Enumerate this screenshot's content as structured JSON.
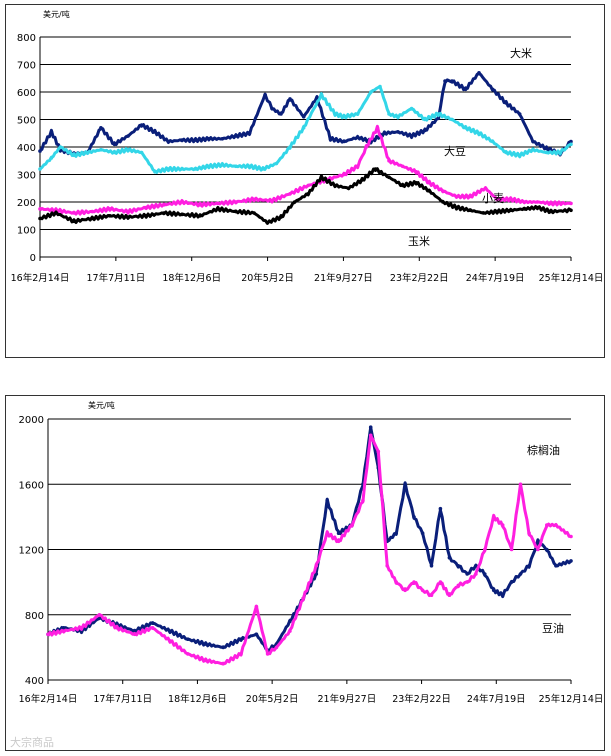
{
  "colors": {
    "rice": "#0a1f7a",
    "soybean": "#33d6e8",
    "wheat": "#ff1fe0",
    "corn": "#000000",
    "palm_oil": "#0a1f7a",
    "soy_oil": "#ff1fe0"
  },
  "watermark": "大宗商品",
  "chart_data": [
    {
      "type": "line",
      "ylabel": "美元/吨",
      "ylim": [
        0,
        800
      ],
      "yticks": [
        0,
        100,
        200,
        300,
        400,
        500,
        600,
        700,
        800
      ],
      "x_start": "2016-02-14",
      "x_end": "2025-12-14",
      "xtick_labels": [
        "16年2月14日",
        "17年7月11日",
        "18年12月6日",
        "20年5月2日",
        "21年9月27日",
        "23年2月22日",
        "24年7月19日",
        "25年12月14日"
      ],
      "grid": true,
      "series": [
        {
          "name": "大米",
          "color_key": "rice",
          "x": [
            "2016-02-14",
            "2016-05-01",
            "2016-07-01",
            "2016-10-01",
            "2017-01-01",
            "2017-04-01",
            "2017-07-01",
            "2017-10-01",
            "2018-01-01",
            "2018-04-01",
            "2018-07-01",
            "2018-10-01",
            "2019-01-01",
            "2019-04-01",
            "2019-07-01",
            "2019-10-01",
            "2020-01-01",
            "2020-04-15",
            "2020-06-01",
            "2020-08-01",
            "2020-10-01",
            "2021-01-01",
            "2021-04-01",
            "2021-07-01",
            "2021-10-01",
            "2022-01-01",
            "2022-04-01",
            "2022-07-01",
            "2022-10-01",
            "2023-01-01",
            "2023-04-01",
            "2023-07-01",
            "2023-08-15",
            "2023-10-01",
            "2024-01-01",
            "2024-04-01",
            "2024-07-01",
            "2024-10-01",
            "2025-01-01",
            "2025-04-01",
            "2025-07-01",
            "2025-10-01",
            "2025-12-14"
          ],
          "values": [
            385,
            455,
            390,
            375,
            380,
            470,
            410,
            440,
            480,
            455,
            420,
            425,
            425,
            430,
            430,
            440,
            450,
            590,
            540,
            520,
            575,
            510,
            580,
            430,
            420,
            435,
            420,
            450,
            455,
            440,
            460,
            505,
            640,
            640,
            610,
            670,
            610,
            560,
            520,
            420,
            395,
            375,
            420
          ]
        },
        {
          "name": "大豆",
          "color_key": "soybean",
          "x": [
            "2016-02-14",
            "2016-05-01",
            "2016-07-01",
            "2016-10-01",
            "2017-01-01",
            "2017-04-01",
            "2017-07-01",
            "2017-10-01",
            "2018-01-01",
            "2018-04-01",
            "2018-07-01",
            "2018-10-01",
            "2019-01-01",
            "2019-04-01",
            "2019-07-01",
            "2019-10-01",
            "2020-01-01",
            "2020-04-01",
            "2020-07-01",
            "2020-10-01",
            "2021-01-01",
            "2021-05-01",
            "2021-08-01",
            "2021-10-01",
            "2022-01-01",
            "2022-04-01",
            "2022-06-01",
            "2022-08-01",
            "2022-10-01",
            "2023-01-01",
            "2023-04-01",
            "2023-07-01",
            "2023-10-01",
            "2024-01-01",
            "2024-04-01",
            "2024-07-01",
            "2024-10-01",
            "2025-01-01",
            "2025-04-01",
            "2025-07-01",
            "2025-10-01",
            "2025-12-14"
          ],
          "values": [
            320,
            360,
            400,
            370,
            380,
            390,
            380,
            390,
            380,
            310,
            320,
            320,
            320,
            330,
            335,
            330,
            330,
            320,
            340,
            400,
            470,
            590,
            520,
            510,
            520,
            600,
            620,
            520,
            510,
            540,
            500,
            520,
            500,
            470,
            450,
            420,
            380,
            370,
            390,
            380,
            380,
            410
          ]
        },
        {
          "name": "小麦",
          "color_key": "wheat",
          "x": [
            "2016-02-14",
            "2016-06-01",
            "2016-10-01",
            "2017-02-01",
            "2017-06-01",
            "2017-10-01",
            "2018-02-01",
            "2018-06-01",
            "2018-10-01",
            "2019-02-01",
            "2019-06-01",
            "2019-10-01",
            "2020-02-01",
            "2020-06-01",
            "2020-10-01",
            "2021-02-01",
            "2021-06-01",
            "2021-10-01",
            "2022-01-01",
            "2022-03-01",
            "2022-05-15",
            "2022-08-01",
            "2022-11-01",
            "2023-02-01",
            "2023-05-01",
            "2023-08-01",
            "2023-11-01",
            "2024-02-01",
            "2024-05-15",
            "2024-08-01",
            "2024-11-01",
            "2025-02-01",
            "2025-05-01",
            "2025-08-01",
            "2025-12-14"
          ],
          "values": [
            175,
            170,
            160,
            165,
            175,
            165,
            180,
            190,
            200,
            190,
            195,
            200,
            210,
            205,
            230,
            260,
            280,
            300,
            330,
            400,
            470,
            350,
            330,
            310,
            270,
            240,
            220,
            220,
            250,
            210,
            210,
            200,
            200,
            195,
            195
          ]
        },
        {
          "name": "玉米",
          "color_key": "corn",
          "x": [
            "2016-02-14",
            "2016-06-01",
            "2016-10-01",
            "2017-02-01",
            "2017-06-01",
            "2017-10-01",
            "2018-02-01",
            "2018-06-01",
            "2018-10-01",
            "2019-02-01",
            "2019-06-01",
            "2019-10-01",
            "2020-02-01",
            "2020-05-01",
            "2020-08-01",
            "2020-11-01",
            "2021-02-01",
            "2021-05-01",
            "2021-08-01",
            "2021-11-01",
            "2022-02-01",
            "2022-05-01",
            "2022-08-01",
            "2022-11-01",
            "2023-02-01",
            "2023-05-01",
            "2023-08-01",
            "2023-11-01",
            "2024-02-01",
            "2024-05-01",
            "2024-08-01",
            "2024-11-01",
            "2025-02-01",
            "2025-05-01",
            "2025-08-01",
            "2025-12-14"
          ],
          "values": [
            140,
            160,
            130,
            140,
            150,
            145,
            150,
            160,
            155,
            150,
            175,
            165,
            160,
            125,
            145,
            200,
            230,
            290,
            260,
            250,
            280,
            320,
            290,
            260,
            270,
            240,
            200,
            180,
            170,
            160,
            165,
            170,
            175,
            180,
            165,
            170
          ]
        }
      ]
    },
    {
      "type": "line",
      "ylabel": "美元/吨",
      "ylim": [
        400,
        2000
      ],
      "yticks": [
        400,
        800,
        1200,
        1600,
        2000
      ],
      "x_start": "2016-02-14",
      "x_end": "2025-12-14",
      "xtick_labels": [
        "16年2月14日",
        "17年7月11日",
        "18年12月6日",
        "20年5月2日",
        "21年9月27日",
        "23年2月22日",
        "24年7月19日",
        "25年12月14日"
      ],
      "grid": true,
      "series": [
        {
          "name": "棕榈油",
          "color_key": "palm_oil",
          "x": [
            "2016-02-14",
            "2016-06-01",
            "2016-10-01",
            "2017-02-01",
            "2017-06-01",
            "2017-10-01",
            "2018-02-01",
            "2018-06-01",
            "2018-10-01",
            "2019-02-01",
            "2019-06-01",
            "2019-10-01",
            "2020-01-15",
            "2020-04-01",
            "2020-06-01",
            "2020-09-01",
            "2020-12-01",
            "2021-03-01",
            "2021-05-15",
            "2021-08-01",
            "2021-11-01",
            "2022-01-15",
            "2022-03-10",
            "2022-05-01",
            "2022-07-01",
            "2022-09-01",
            "2022-11-01",
            "2023-01-01",
            "2023-03-01",
            "2023-05-01",
            "2023-07-01",
            "2023-09-01",
            "2023-11-01",
            "2024-01-01",
            "2024-03-01",
            "2024-05-01",
            "2024-07-01",
            "2024-09-01",
            "2024-11-01",
            "2025-01-01",
            "2025-03-01",
            "2025-05-01",
            "2025-07-01",
            "2025-09-01",
            "2025-12-14"
          ],
          "values": [
            680,
            720,
            700,
            780,
            740,
            700,
            750,
            700,
            650,
            620,
            600,
            650,
            680,
            580,
            620,
            760,
            900,
            1050,
            1500,
            1300,
            1350,
            1600,
            1950,
            1700,
            1250,
            1300,
            1600,
            1400,
            1300,
            1100,
            1450,
            1150,
            1100,
            1050,
            1100,
            1050,
            950,
            920,
            1000,
            1050,
            1100,
            1250,
            1200,
            1100,
            1130
          ]
        },
        {
          "name": "豆油",
          "color_key": "soy_oil",
          "x": [
            "2016-02-14",
            "2016-06-01",
            "2016-10-01",
            "2017-02-01",
            "2017-06-01",
            "2017-10-01",
            "2018-02-01",
            "2018-06-01",
            "2018-10-01",
            "2019-02-01",
            "2019-06-01",
            "2019-10-01",
            "2020-01-15",
            "2020-04-01",
            "2020-06-01",
            "2020-09-01",
            "2020-12-01",
            "2021-03-01",
            "2021-05-15",
            "2021-08-01",
            "2021-11-01",
            "2022-01-15",
            "2022-03-10",
            "2022-05-01",
            "2022-07-01",
            "2022-09-01",
            "2022-11-01",
            "2023-01-01",
            "2023-03-01",
            "2023-05-01",
            "2023-07-01",
            "2023-09-01",
            "2023-11-01",
            "2024-01-01",
            "2024-03-01",
            "2024-05-01",
            "2024-07-01",
            "2024-09-01",
            "2024-11-01",
            "2025-01-01",
            "2025-03-01",
            "2025-05-01",
            "2025-07-01",
            "2025-09-01",
            "2025-12-14"
          ],
          "values": [
            680,
            700,
            720,
            800,
            720,
            680,
            720,
            640,
            560,
            520,
            500,
            560,
            850,
            560,
            600,
            700,
            900,
            1100,
            1300,
            1250,
            1350,
            1500,
            1900,
            1800,
            1100,
            1000,
            950,
            1000,
            950,
            920,
            1000,
            920,
            980,
            1000,
            1050,
            1200,
            1400,
            1350,
            1200,
            1600,
            1300,
            1200,
            1350,
            1350,
            1280
          ]
        }
      ]
    }
  ]
}
